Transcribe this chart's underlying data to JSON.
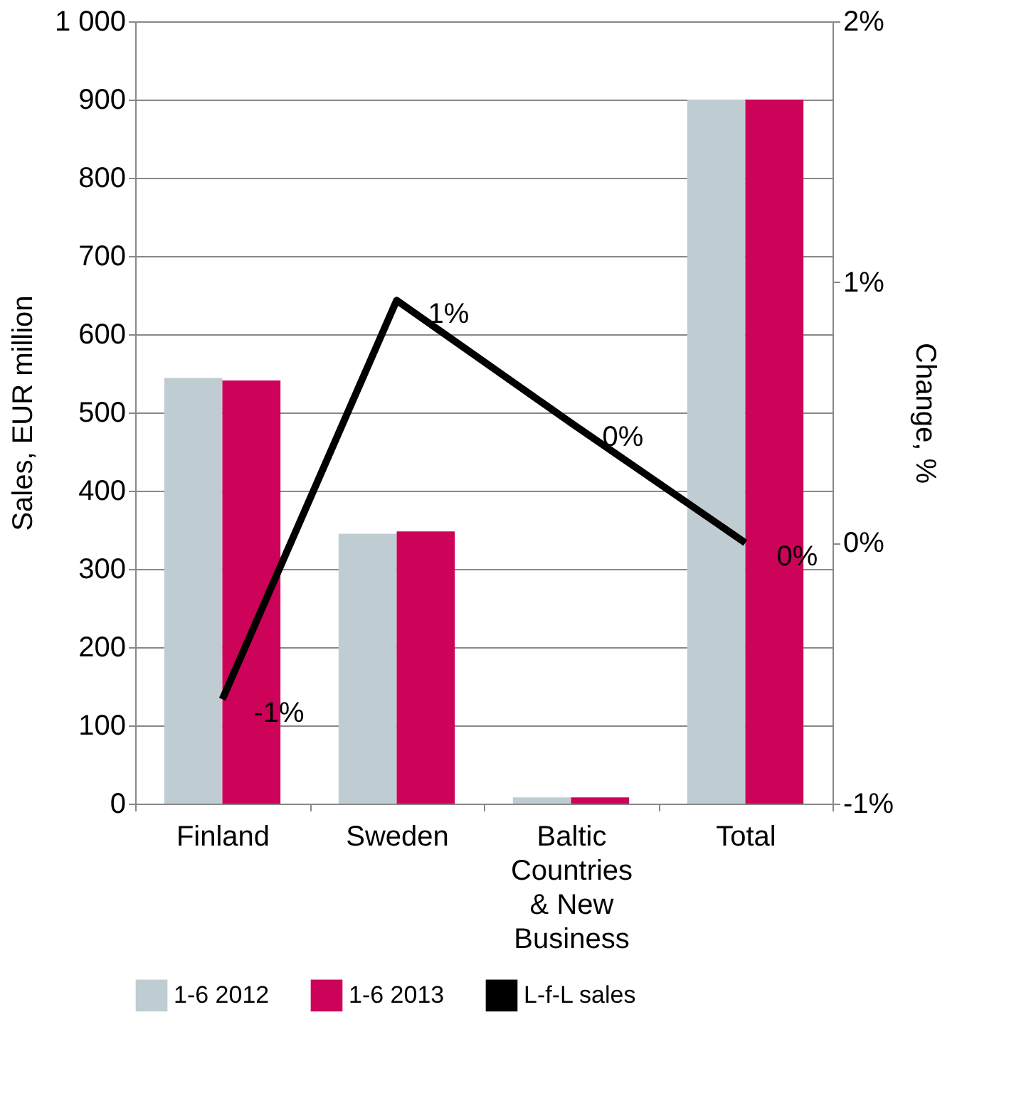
{
  "chart_data": {
    "type": "bar",
    "categories": [
      "Finland",
      "Sweden",
      "Baltic Countries & New Business",
      "Total"
    ],
    "ylabel": "Sales, EUR million",
    "y2label": "Change, %",
    "ylim": [
      0,
      1000
    ],
    "yticks": [
      0,
      100,
      200,
      300,
      400,
      500,
      600,
      700,
      800,
      900,
      {
        "value": 1000,
        "label": "1 000"
      }
    ],
    "y2lim": [
      -1,
      2
    ],
    "y2ticks": [
      {
        "value": -1,
        "label": "-1%"
      },
      {
        "value": 0,
        "label": "0%"
      },
      {
        "value": 1,
        "label": "1%"
      },
      {
        "value": 2,
        "label": "2%"
      }
    ],
    "grid": "y",
    "legend": "bottom",
    "series": [
      {
        "name": "1-6 2012",
        "color": "#bfcdd2",
        "values": [
          544,
          345,
          8,
          900
        ]
      },
      {
        "name": "1-6 2013",
        "color": "#cc0358",
        "values": [
          541,
          348,
          8,
          900
        ]
      },
      {
        "name": "L-f-L sales",
        "type": "line",
        "axis": "y2",
        "color": "#000000",
        "marker": "none",
        "line_style": "solid",
        "values": [
          -0.6,
          0.93,
          0.46,
          0
        ],
        "value_labels": [
          "-1%",
          "1%",
          "0%",
          "0%"
        ]
      }
    ]
  }
}
